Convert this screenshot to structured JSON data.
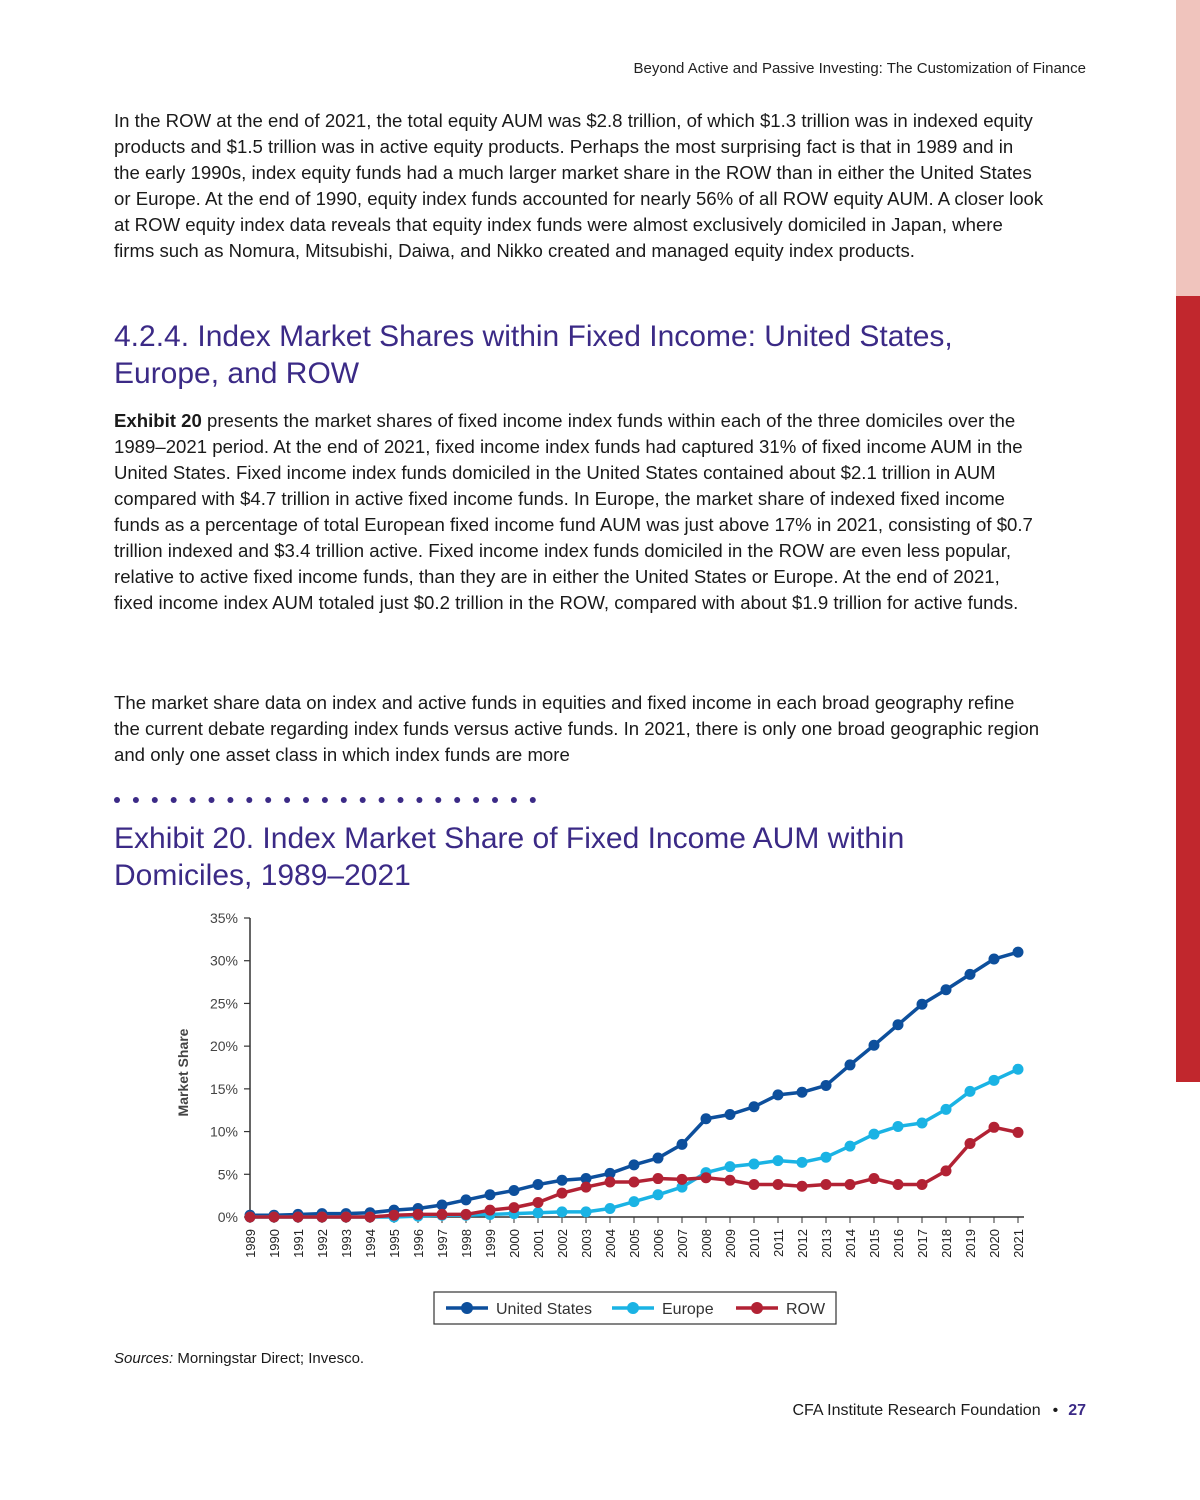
{
  "running_head": "Beyond Active and Passive Investing: The Customization of Finance",
  "para1": "In the ROW at the end of 2021, the total equity AUM was $2.8 trillion, of which $1.3 trillion was in indexed equity products and $1.5 trillion was in active equity products. Perhaps the most surprising fact is that in 1989 and in the early 1990s, index equity funds had a much larger market share in the ROW than in either the United States or Europe. At the end of 1990, equity index funds accounted for nearly 56% of all ROW equity AUM. A closer look at ROW equity index data reveals that equity index funds were almost exclusively domiciled in Japan, where firms such as Nomura, Mitsubishi, Daiwa, and Nikko created and managed equity index products.",
  "section_heading": "4.2.4. Index Market Shares within Fixed Income: United States, Europe, and ROW",
  "para2_lead": "Exhibit 20",
  "para2_rest": " presents the market shares of fixed income index funds within each of the three domiciles over the 1989–2021 period. At the end of 2021, fixed income index funds had captured 31% of fixed income AUM in the United States. Fixed income index funds domiciled in the United States contained about $2.1 trillion in AUM compared with $4.7 trillion in active fixed income funds. In Europe, the market share of indexed fixed income funds as a percentage of total European fixed income fund AUM was just above 17% in 2021, consisting of $0.7 trillion indexed and $3.4 trillion active. Fixed income index funds domiciled in the ROW are even less popular, relative to active fixed income funds, than they are in either the United States or Europe. At the end of 2021, fixed income index AUM totaled just $0.2 trillion in the ROW, compared with about $1.9 trillion for active funds.",
  "para3": "The market share data on index and active funds in equities and fixed income in each broad geography refine the current debate regarding index funds versus active funds. In 2021, there is only one broad geographic region and only one asset class in which index funds are more",
  "exhibit_title": "Exhibit 20. Index Market Share of Fixed Income AUM within Domiciles, 1989–2021",
  "sources_label": "Sources:",
  "sources_text": " Morningstar Direct; Invesco.",
  "footer_org": "CFA Institute Research Foundation",
  "page_number": "27",
  "colors": {
    "heading": "#3b2a86",
    "accent_red": "#c1272d",
    "accent_pink": "#f0c4bd"
  },
  "chart_data": {
    "type": "line",
    "title": "",
    "xlabel": "",
    "ylabel": "Market Share",
    "ylim": [
      0,
      35
    ],
    "yticks": [
      "0%",
      "5%",
      "10%",
      "15%",
      "20%",
      "25%",
      "30%",
      "35%"
    ],
    "categories": [
      "1989",
      "1990",
      "1991",
      "1992",
      "1993",
      "1994",
      "1995",
      "1996",
      "1997",
      "1998",
      "1999",
      "2000",
      "2001",
      "2002",
      "2003",
      "2004",
      "2005",
      "2006",
      "2007",
      "2008",
      "2009",
      "2010",
      "2011",
      "2012",
      "2013",
      "2014",
      "2015",
      "2016",
      "2017",
      "2018",
      "2019",
      "2020",
      "2021"
    ],
    "legend_position": "bottom",
    "series": [
      {
        "name": "United States",
        "color": "#0d4f9c",
        "values": [
          0.2,
          0.2,
          0.3,
          0.4,
          0.4,
          0.5,
          0.8,
          1.0,
          1.4,
          2.0,
          2.6,
          3.1,
          3.8,
          4.3,
          4.5,
          5.1,
          6.1,
          6.9,
          8.5,
          11.5,
          12.0,
          12.9,
          14.3,
          14.6,
          15.4,
          17.8,
          20.1,
          22.5,
          24.9,
          26.6,
          28.4,
          30.2,
          31.0
        ]
      },
      {
        "name": "Europe",
        "color": "#1ab3e4",
        "values": [
          0.0,
          0.0,
          0.0,
          0.0,
          0.0,
          0.0,
          0.0,
          0.1,
          0.2,
          0.2,
          0.3,
          0.4,
          0.5,
          0.6,
          0.6,
          1.0,
          1.8,
          2.6,
          3.5,
          5.2,
          5.9,
          6.2,
          6.6,
          6.4,
          7.0,
          8.3,
          9.7,
          10.6,
          11.0,
          12.6,
          14.7,
          16.0,
          17.3
        ]
      },
      {
        "name": "ROW",
        "color": "#b22234",
        "values": [
          0.0,
          0.0,
          0.0,
          0.0,
          0.0,
          0.0,
          0.2,
          0.3,
          0.3,
          0.3,
          0.8,
          1.1,
          1.7,
          2.8,
          3.5,
          4.1,
          4.1,
          4.5,
          4.4,
          4.6,
          4.3,
          3.8,
          3.8,
          3.6,
          3.8,
          3.8,
          4.5,
          3.8,
          3.8,
          5.4,
          8.6,
          10.5,
          9.9
        ]
      }
    ]
  }
}
